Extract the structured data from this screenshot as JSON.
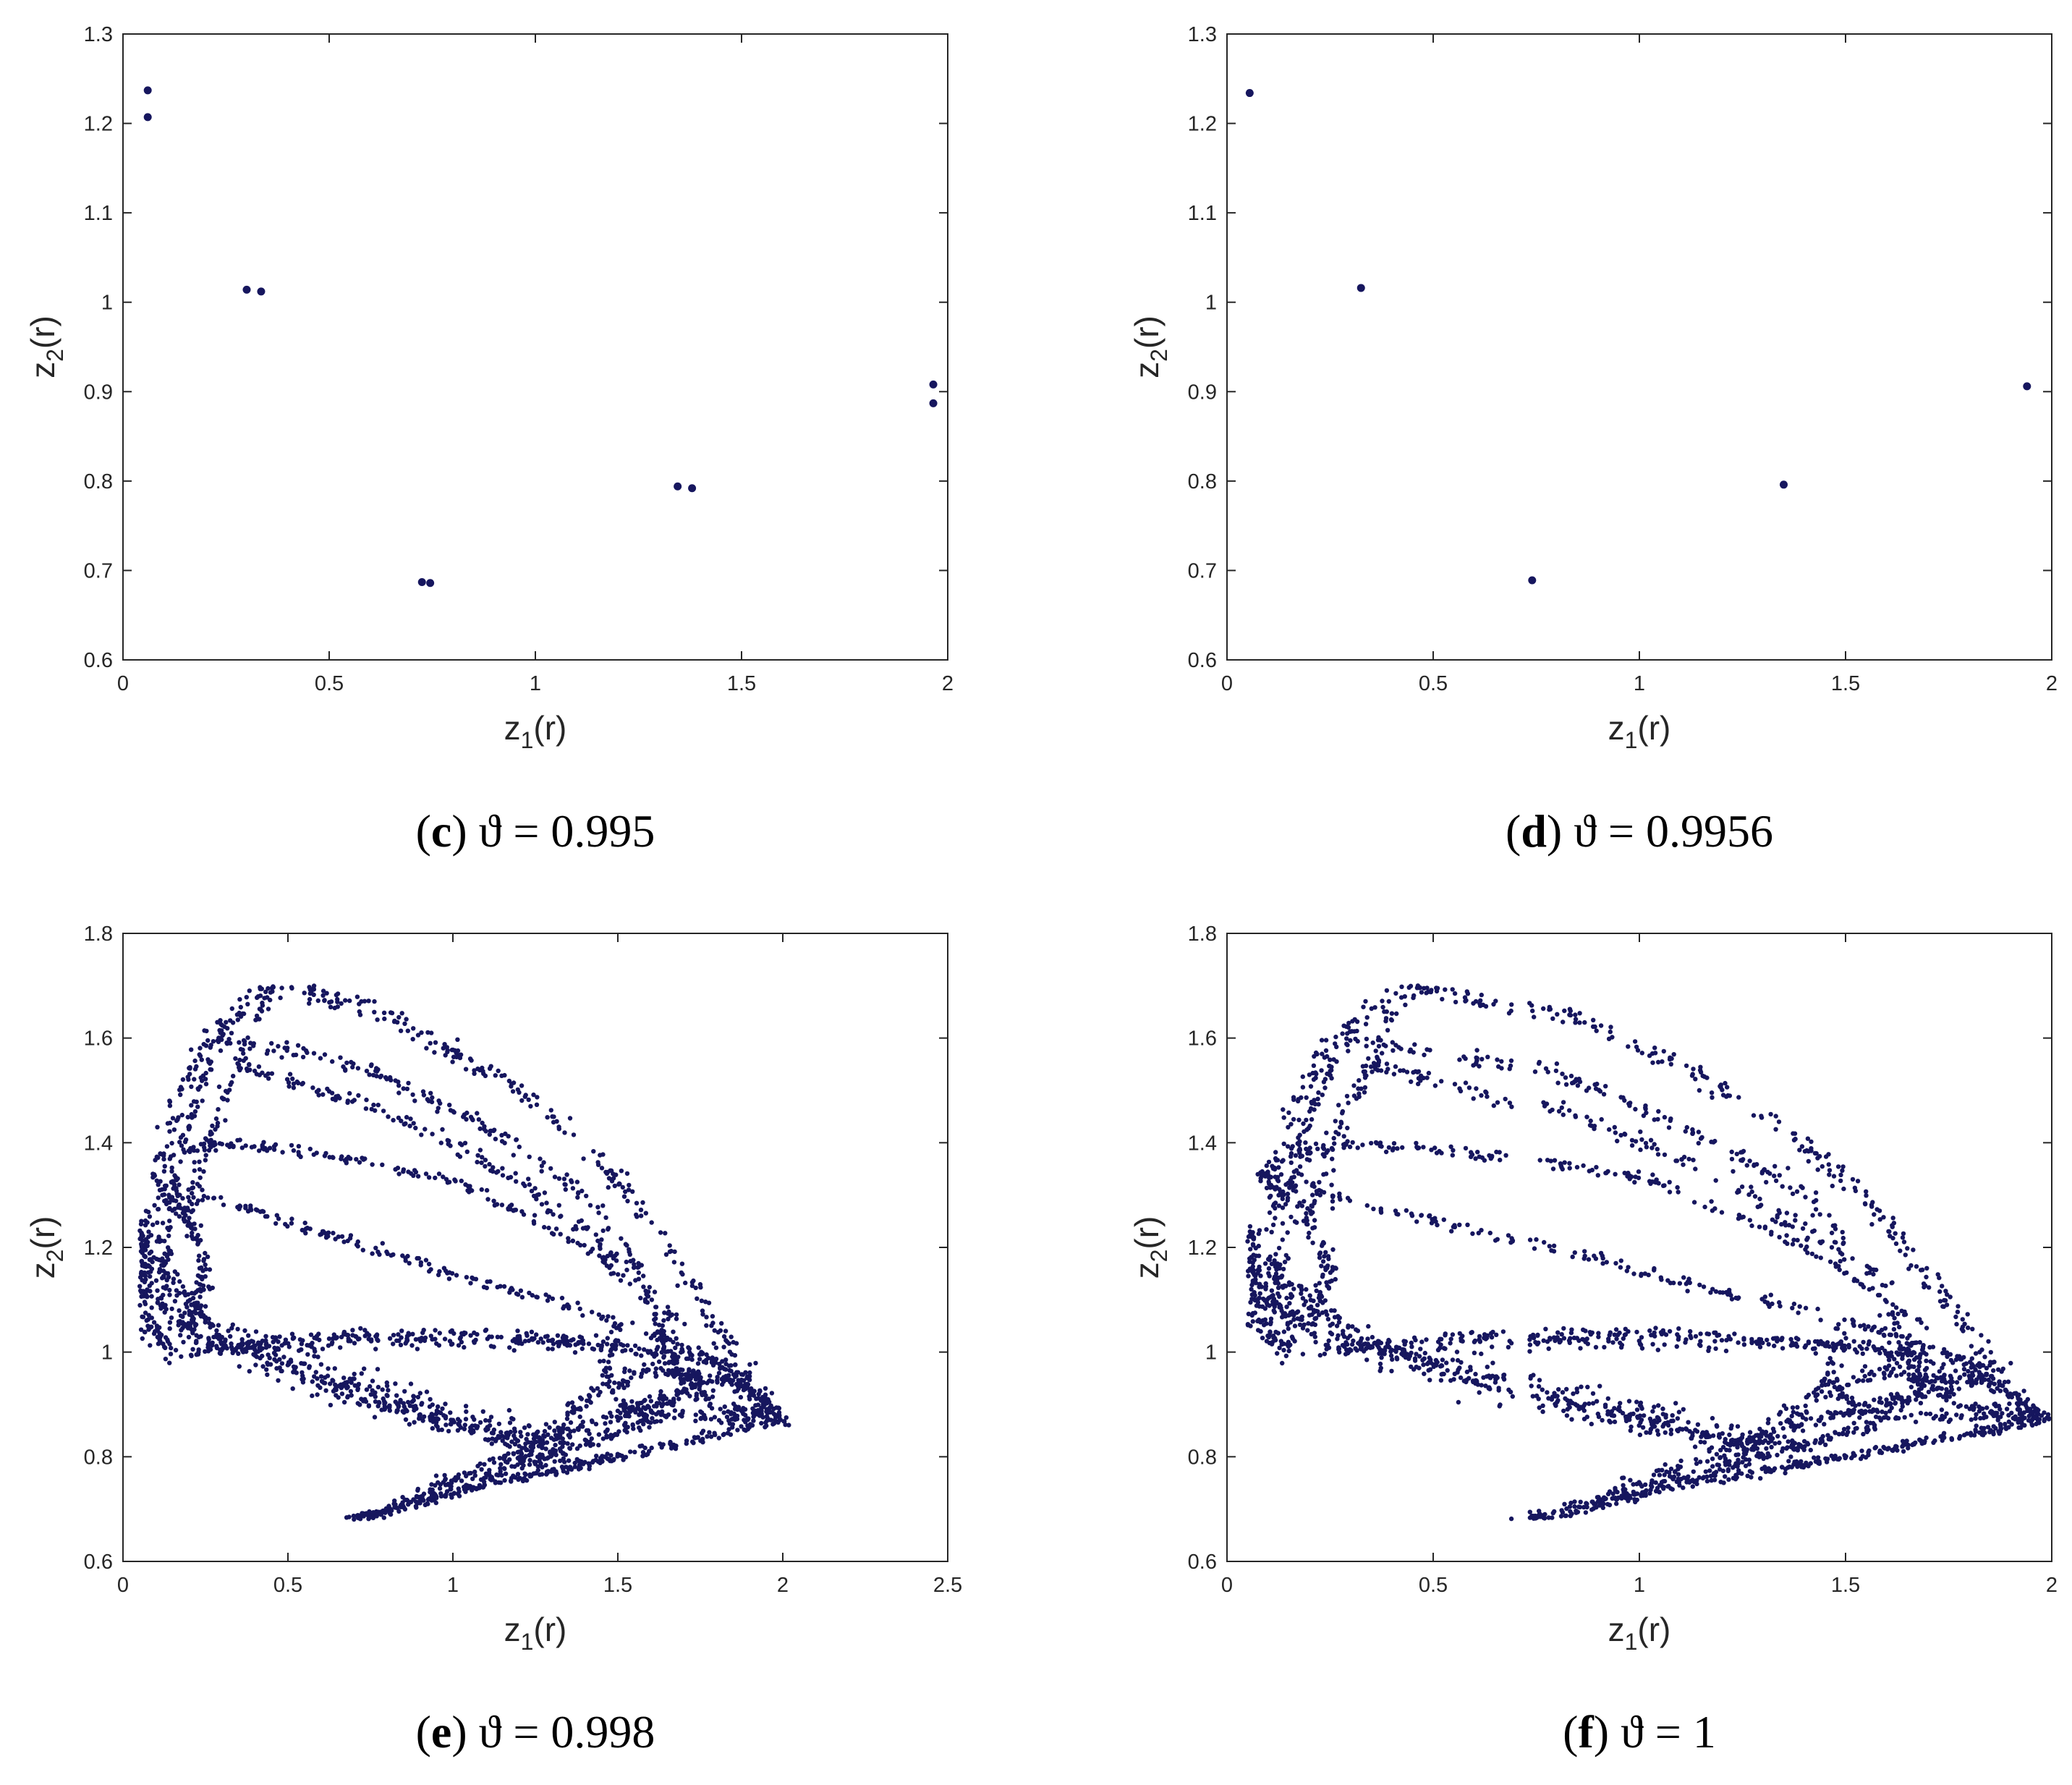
{
  "chart_data": [
    {
      "id": "c",
      "type": "scatter",
      "xlabel": "z1(r)",
      "ylabel": "z2(r)",
      "xlim": [
        0,
        2
      ],
      "ylim": [
        0.6,
        1.3
      ],
      "xticks": [
        "0",
        "0.5",
        "1",
        "1.5",
        "2"
      ],
      "yticks": [
        "0.6",
        "0.7",
        "0.8",
        "0.9",
        "1",
        "1.1",
        "1.2",
        "1.3"
      ],
      "caption_label": "c",
      "caption_text": "ϑ = 0.995",
      "marker_color": "#16165e",
      "points": [
        [
          0.06,
          1.237
        ],
        [
          0.06,
          1.207
        ],
        [
          0.3,
          1.014
        ],
        [
          0.335,
          1.012
        ],
        [
          0.725,
          0.687
        ],
        [
          0.745,
          0.686
        ],
        [
          1.345,
          0.794
        ],
        [
          1.38,
          0.792
        ],
        [
          1.965,
          0.908
        ],
        [
          1.965,
          0.887
        ]
      ]
    },
    {
      "id": "d",
      "type": "scatter",
      "xlabel": "z1(r)",
      "ylabel": "z2(r)",
      "xlim": [
        0,
        2
      ],
      "ylim": [
        0.6,
        1.3
      ],
      "xticks": [
        "0",
        "0.5",
        "1",
        "1.5",
        "2"
      ],
      "yticks": [
        "0.6",
        "0.7",
        "0.8",
        "0.9",
        "1",
        "1.1",
        "1.2",
        "1.3"
      ],
      "caption_label": "d",
      "caption_text": "ϑ = 0.9956",
      "marker_color": "#16165e",
      "points": [
        [
          0.055,
          1.234
        ],
        [
          0.325,
          1.016
        ],
        [
          0.74,
          0.689
        ],
        [
          1.35,
          0.796
        ],
        [
          1.94,
          0.906
        ]
      ]
    },
    {
      "id": "e",
      "type": "scatter",
      "xlabel": "z1(r)",
      "ylabel": "z2(r)",
      "xlim": [
        0,
        2.5
      ],
      "ylim": [
        0.6,
        1.8
      ],
      "xticks": [
        "0",
        "0.5",
        "1",
        "1.5",
        "2",
        "2.5"
      ],
      "yticks": [
        "0.6",
        "0.8",
        "1",
        "1.2",
        "1.4",
        "1.6",
        "1.8"
      ],
      "caption_label": "e",
      "caption_text": "ϑ = 0.998",
      "marker_color": "#16165e",
      "attractor": {
        "x_min": 0.05,
        "x_max": 2.02,
        "y_min": 0.68,
        "y_max": 1.7,
        "tip": [
          0.7,
          0.68
        ],
        "nose": [
          2.0,
          0.87
        ],
        "approx_points": 3000
      }
    },
    {
      "id": "f",
      "type": "scatter",
      "xlabel": "z1(r)",
      "ylabel": "z2(r)",
      "xlim": [
        0,
        2
      ],
      "ylim": [
        0.6,
        1.8
      ],
      "xticks": [
        "0",
        "0.5",
        "1",
        "1.5",
        "2"
      ],
      "yticks": [
        "0.6",
        "0.8",
        "1",
        "1.2",
        "1.4",
        "1.6",
        "1.8"
      ],
      "caption_label": "f",
      "caption_text": "ϑ = 1",
      "marker_color": "#16165e",
      "attractor": {
        "x_min": 0.05,
        "x_max": 2.0,
        "y_min": 0.68,
        "y_max": 1.7,
        "tip": [
          0.74,
          0.685
        ],
        "nose": [
          1.98,
          0.88
        ],
        "approx_points": 3000
      }
    }
  ]
}
